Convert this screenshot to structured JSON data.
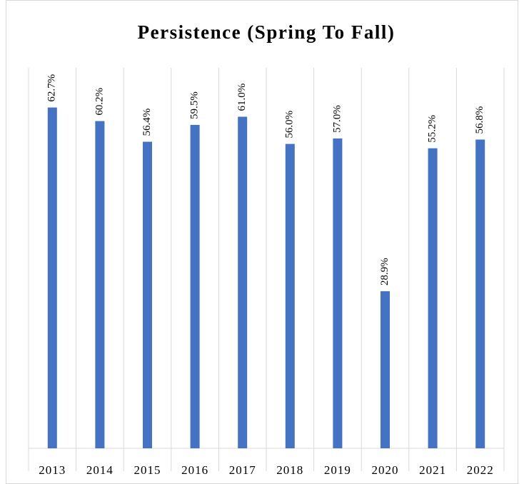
{
  "chart_data": {
    "type": "bar",
    "title": "Persistence (Spring To Fall)",
    "categories": [
      "2013",
      "2014",
      "2015",
      "2016",
      "2017",
      "2018",
      "2019",
      "2020",
      "2021",
      "2022"
    ],
    "values": [
      62.7,
      60.2,
      56.4,
      59.5,
      61.0,
      56.0,
      57.0,
      28.9,
      55.2,
      56.8
    ],
    "value_labels": [
      "62.7%",
      "60.2%",
      "56.4%",
      "59.5%",
      "61.0%",
      "56.0%",
      "57.0%",
      "28.9%",
      "55.2%",
      "56.8%"
    ],
    "color": "#4472c4",
    "ylim": [
      0,
      70
    ]
  }
}
